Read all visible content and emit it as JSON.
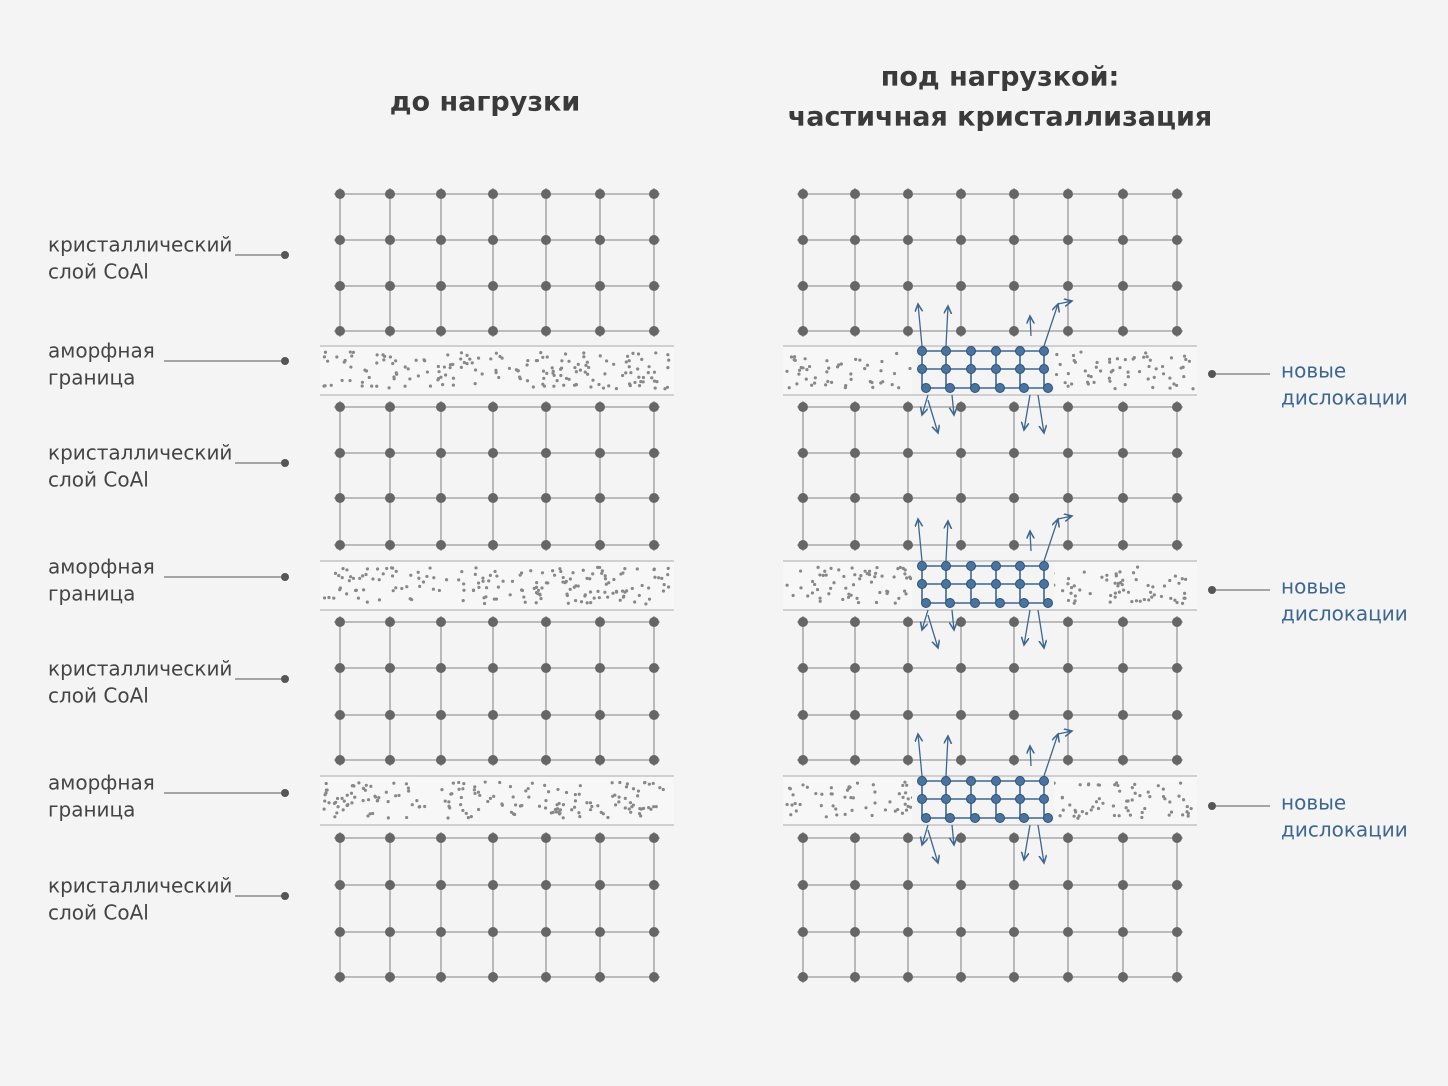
{
  "panels": [
    {
      "title": [
        "до нагрузки"
      ]
    },
    {
      "title": [
        "под нагрузкой:",
        "частичная кристаллизация"
      ]
    }
  ],
  "left_labels": [
    [
      "кристаллический",
      "слой CoAl"
    ],
    [
      "аморфная",
      "граница"
    ],
    [
      "кристаллический",
      "слой CoAl"
    ],
    [
      "аморфная",
      "граница"
    ],
    [
      "кристаллический",
      "слой CoAl"
    ],
    [
      "аморфная",
      "граница"
    ],
    [
      "кристаллический",
      "слой CoAl"
    ]
  ],
  "right_labels": [
    [
      "новые",
      "дислокации"
    ],
    [
      "новые",
      "дислокации"
    ],
    [
      "новые",
      "дислокации"
    ]
  ]
}
